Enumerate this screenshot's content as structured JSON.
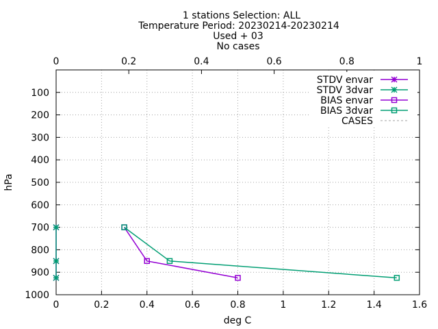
{
  "title_lines": [
    "1 stations Selection: ALL",
    "Temperature  Period: 20230214-20230214",
    "Used  + 03",
    "No cases"
  ],
  "chart_data": {
    "type": "line",
    "xlabel": "deg C",
    "ylabel": "hPa",
    "xlim": [
      0,
      1.6
    ],
    "ylim": [
      1000,
      0
    ],
    "y_inverted": true,
    "x_ticks": [
      "0",
      "0.2",
      "0.4",
      "0.6",
      "0.8",
      "1",
      "1.2",
      "1.4",
      "1.6"
    ],
    "y_ticks": [
      "100",
      "200",
      "300",
      "400",
      "500",
      "600",
      "700",
      "800",
      "900",
      "1000"
    ],
    "x2lim": [
      0,
      1
    ],
    "x2_ticks": [
      "0",
      "0.2",
      "0.4",
      "0.6",
      "0.8",
      "1"
    ],
    "grid": true,
    "legend_position": "top-right",
    "series": [
      {
        "name": "STDV envar",
        "color": "#9400d3",
        "marker": "star",
        "x": [
          0,
          0,
          0
        ],
        "y": [
          700,
          850,
          925
        ]
      },
      {
        "name": "STDV 3dvar",
        "color": "#009e73",
        "marker": "star",
        "x": [
          0,
          0,
          0
        ],
        "y": [
          700,
          850,
          925
        ]
      },
      {
        "name": "BIAS envar",
        "color": "#9400d3",
        "marker": "square",
        "x": [
          0.3,
          0.4,
          0.8
        ],
        "y": [
          700,
          850,
          925
        ]
      },
      {
        "name": "BIAS 3dvar",
        "color": "#009e73",
        "marker": "square",
        "x": [
          0.3,
          0.5,
          1.5
        ],
        "y": [
          700,
          850,
          925
        ]
      },
      {
        "name": "CASES",
        "color": "#a0a0a0",
        "marker": "none",
        "dashed": true,
        "x2": [],
        "y": []
      }
    ]
  }
}
